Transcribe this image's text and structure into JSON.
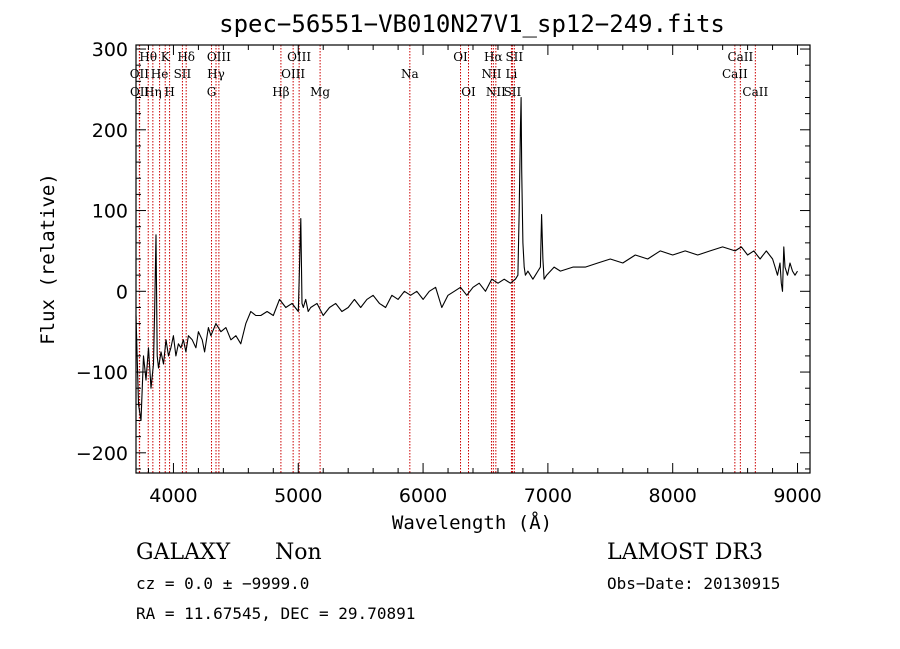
{
  "chart_data": {
    "type": "line",
    "title": "spec−56551−VB010N27V1_sp12−249.fits",
    "xlabel": "Wavelength (Å)",
    "ylabel": "Flux (relative)",
    "xlim": [
      3700,
      9100
    ],
    "ylim": [
      -225,
      305
    ],
    "x_ticks": [
      4000,
      5000,
      6000,
      7000,
      8000,
      9000
    ],
    "y_ticks": [
      -200,
      -100,
      0,
      100,
      200,
      300
    ],
    "y_tick_labels": [
      "−200",
      "−100",
      "0",
      "100",
      "200",
      "300"
    ],
    "series": [
      {
        "name": "flux",
        "x": [
          3700,
          3720,
          3740,
          3760,
          3780,
          3800,
          3820,
          3840,
          3850,
          3860,
          3870,
          3880,
          3900,
          3920,
          3940,
          3960,
          3980,
          4000,
          4020,
          4040,
          4060,
          4080,
          4100,
          4120,
          4150,
          4180,
          4200,
          4230,
          4250,
          4280,
          4300,
          4340,
          4380,
          4420,
          4460,
          4500,
          4540,
          4580,
          4620,
          4660,
          4700,
          4750,
          4800,
          4850,
          4900,
          4950,
          5000,
          5020,
          5030,
          5040,
          5060,
          5080,
          5100,
          5150,
          5200,
          5250,
          5300,
          5350,
          5400,
          5450,
          5500,
          5550,
          5600,
          5650,
          5700,
          5750,
          5800,
          5850,
          5900,
          5950,
          6000,
          6050,
          6100,
          6150,
          6200,
          6250,
          6300,
          6350,
          6400,
          6450,
          6500,
          6550,
          6600,
          6650,
          6700,
          6740,
          6760,
          6770,
          6780,
          6785,
          6790,
          6800,
          6810,
          6820,
          6840,
          6860,
          6880,
          6900,
          6920,
          6940,
          6950,
          6960,
          6970,
          6990,
          7050,
          7100,
          7200,
          7300,
          7400,
          7500,
          7600,
          7700,
          7800,
          7900,
          8000,
          8100,
          8200,
          8300,
          8400,
          8500,
          8550,
          8600,
          8650,
          8700,
          8750,
          8800,
          8820,
          8840,
          8860,
          8870,
          8880,
          8890,
          8900,
          8920,
          8940,
          8960,
          8980,
          9000
        ],
        "values": [
          -30,
          -140,
          -160,
          -80,
          -110,
          -70,
          -120,
          -90,
          -20,
          70,
          -80,
          -95,
          -75,
          -90,
          -60,
          -80,
          -70,
          -55,
          -80,
          -65,
          -70,
          -60,
          -75,
          -55,
          -60,
          -70,
          -50,
          -60,
          -75,
          -45,
          -55,
          -40,
          -50,
          -45,
          -60,
          -55,
          -65,
          -40,
          -25,
          -30,
          -30,
          -25,
          -30,
          -10,
          -20,
          -15,
          -25,
          90,
          -15,
          -20,
          -10,
          -25,
          -20,
          -15,
          -30,
          -20,
          -15,
          -25,
          -20,
          -10,
          -20,
          -10,
          -5,
          -15,
          -20,
          -5,
          -10,
          0,
          -5,
          0,
          -10,
          0,
          5,
          -20,
          -5,
          0,
          5,
          -5,
          5,
          10,
          0,
          15,
          10,
          15,
          10,
          15,
          20,
          100,
          200,
          240,
          150,
          60,
          30,
          20,
          25,
          20,
          15,
          20,
          25,
          30,
          95,
          40,
          15,
          20,
          30,
          25,
          30,
          30,
          35,
          40,
          35,
          45,
          40,
          50,
          45,
          50,
          45,
          50,
          55,
          50,
          55,
          45,
          50,
          40,
          50,
          40,
          30,
          20,
          35,
          10,
          0,
          55,
          30,
          20,
          35,
          25,
          20,
          25
        ]
      }
    ],
    "emission_lines": [
      {
        "name": "OII",
        "x": 3727,
        "row": 2
      },
      {
        "name": "OII",
        "x": 3729,
        "row": 3
      },
      {
        "name": "Hθ",
        "x": 3798,
        "row": 1
      },
      {
        "name": "Hη",
        "x": 3835,
        "row": 3
      },
      {
        "name": "He",
        "x": 3889,
        "row": 2
      },
      {
        "name": "K",
        "x": 3934,
        "row": 1
      },
      {
        "name": "H",
        "x": 3969,
        "row": 3
      },
      {
        "name": "SII",
        "x": 4072,
        "row": 2
      },
      {
        "name": "Hδ",
        "x": 4102,
        "row": 1
      },
      {
        "name": "OIII",
        "x": 4364,
        "row": 1
      },
      {
        "name": "Hγ",
        "x": 4341,
        "row": 2
      },
      {
        "name": "G",
        "x": 4305,
        "row": 3
      },
      {
        "name": "Hβ",
        "x": 4861,
        "row": 3
      },
      {
        "name": "OIII",
        "x": 4959,
        "row": 2
      },
      {
        "name": "OIII",
        "x": 5007,
        "row": 1
      },
      {
        "name": "Mg",
        "x": 5175,
        "row": 3
      },
      {
        "name": "Na",
        "x": 5894,
        "row": 2
      },
      {
        "name": "OI",
        "x": 6300,
        "row": 1
      },
      {
        "name": "OI",
        "x": 6364,
        "row": 3
      },
      {
        "name": "NII",
        "x": 6548,
        "row": 2
      },
      {
        "name": "Hα",
        "x": 6563,
        "row": 1
      },
      {
        "name": "NII",
        "x": 6583,
        "row": 3
      },
      {
        "name": "Li",
        "x": 6708,
        "row": 2
      },
      {
        "name": "SII",
        "x": 6716,
        "row": 3
      },
      {
        "name": "SII",
        "x": 6731,
        "row": 1
      },
      {
        "name": "CaII",
        "x": 8498,
        "row": 2
      },
      {
        "name": "CaII",
        "x": 8542,
        "row": 1
      },
      {
        "name": "CaII",
        "x": 8662,
        "row": 3
      }
    ]
  },
  "info": {
    "object_type": "GALAXY",
    "subclass": "Non",
    "survey": "LAMOST DR3",
    "redshift": "cz = 0.0 ± −9999.0",
    "obs_date": "Obs−Date: 20130915",
    "coords": "RA =  11.67545, DEC =  29.70891"
  },
  "colors": {
    "spectrum": "#000000",
    "line_marker": "#cc0000",
    "axes": "#000000"
  }
}
